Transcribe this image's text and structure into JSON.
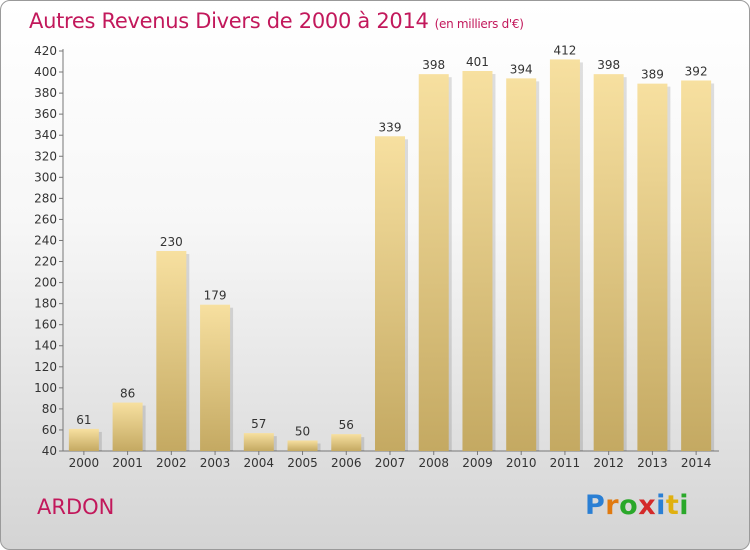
{
  "header": {
    "title": "Autres Revenus Divers de 2000 à 2014",
    "unit": "(en milliers d'€)"
  },
  "footer": {
    "commune": "ARDON",
    "logo_text": "Proxiti"
  },
  "colors": {
    "title": "#c2185b",
    "bar_top": "#f7e0a0",
    "bar_bottom": "#c4a962",
    "logo": [
      "#2a7fd4",
      "#e07a10",
      "#2aa82a",
      "#d42a2a",
      "#2a7fd4",
      "#e0b010",
      "#2aa82a"
    ]
  },
  "chart_data": {
    "type": "bar",
    "categories": [
      "2000",
      "2001",
      "2002",
      "2003",
      "2004",
      "2005",
      "2006",
      "2007",
      "2008",
      "2009",
      "2010",
      "2011",
      "2012",
      "2013",
      "2014"
    ],
    "values": [
      61,
      86,
      230,
      179,
      57,
      50,
      56,
      339,
      398,
      401,
      394,
      412,
      398,
      389,
      392
    ],
    "ylim": [
      40,
      420
    ],
    "yticks": [
      40,
      60,
      80,
      100,
      120,
      140,
      160,
      180,
      200,
      220,
      240,
      260,
      280,
      300,
      320,
      340,
      360,
      380,
      400,
      420
    ],
    "grid": false,
    "legend": "none"
  }
}
